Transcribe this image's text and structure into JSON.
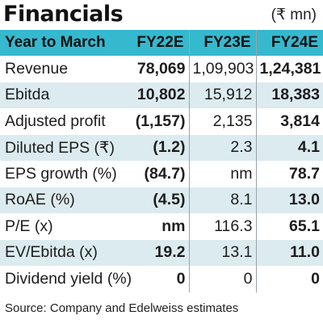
{
  "title": "Financials",
  "unit": "(₹ mn)",
  "columns": [
    "Year to March",
    "FY22E",
    "FY23E",
    "FY24E"
  ],
  "rows": [
    {
      "label": "Revenue",
      "values": [
        "78,069",
        "1,09,903",
        "1,24,381"
      ]
    },
    {
      "label": "Ebitda",
      "values": [
        "10,802",
        "15,912",
        "18,383"
      ]
    },
    {
      "label": "Adjusted profit",
      "values": [
        "(1,157)",
        "2,135",
        "3,814"
      ]
    },
    {
      "label": "Diluted EPS (₹)",
      "values": [
        "(1.2)",
        "2.3",
        "4.1"
      ]
    },
    {
      "label": "EPS growth (%)",
      "values": [
        "(84.7)",
        "nm",
        "78.7"
      ]
    },
    {
      "label": "RoAE (%)",
      "values": [
        "(4.5)",
        "8.1",
        "13.0"
      ]
    },
    {
      "label": "P/E (x)",
      "values": [
        "nm",
        "116.3",
        "65.1"
      ]
    },
    {
      "label": "EV/Ebitda (x)",
      "values": [
        "19.2",
        "13.1",
        "11.0"
      ]
    },
    {
      "label": "Dividend yield (%)",
      "values": [
        "0",
        "0",
        "0"
      ]
    }
  ],
  "source": "Source: Company and Edelweiss estimates",
  "colors": {
    "header_bg": "#35b9cf",
    "alt_row_bg": "#dcebf0",
    "text": "#1a1a1a"
  }
}
